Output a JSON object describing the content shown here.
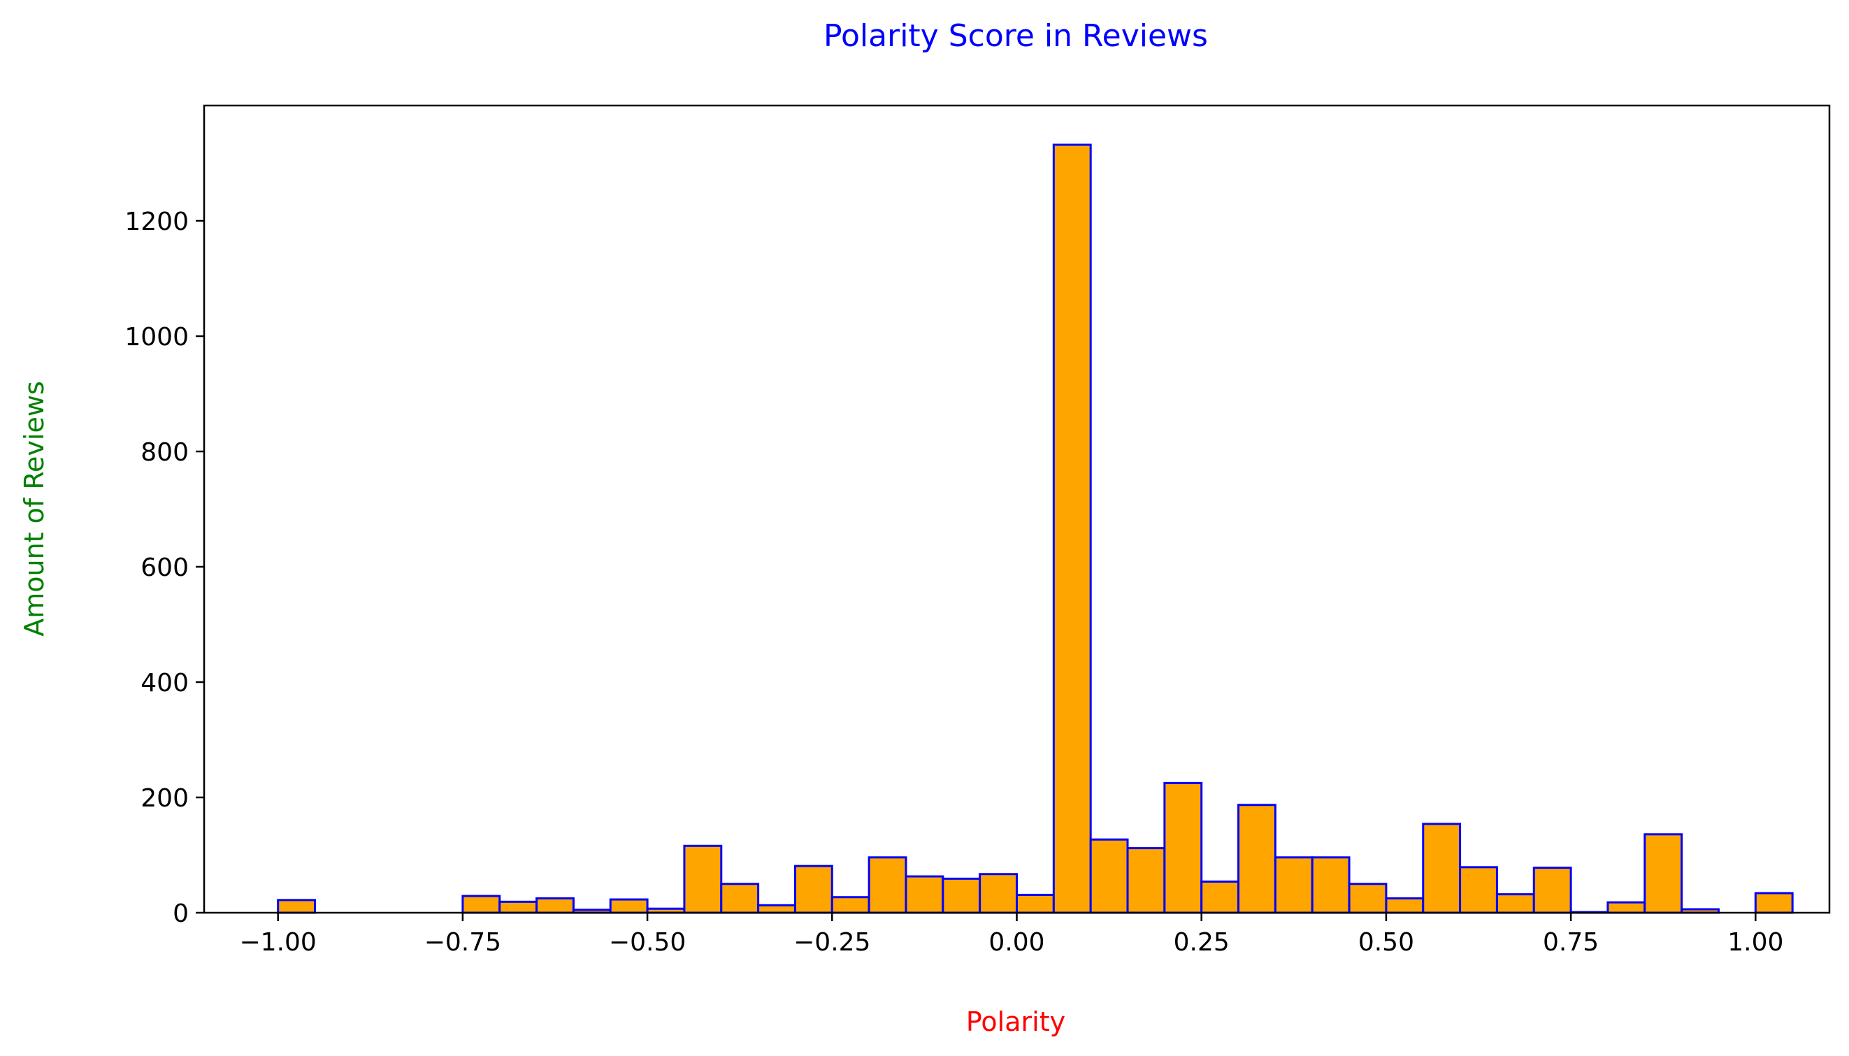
{
  "chart_data": {
    "type": "bar",
    "title": "Polarity Score in Reviews",
    "xlabel": "Polarity",
    "ylabel": "Amount of Reviews",
    "xlim": [
      -1.1,
      1.1
    ],
    "ylim": [
      0,
      1400
    ],
    "bin_width": 0.05,
    "bin_start": -1.0,
    "values": [
      22,
      0,
      0,
      0,
      0,
      29,
      19,
      25,
      5,
      23,
      7,
      116,
      50,
      13,
      81,
      27,
      96,
      63,
      59,
      67,
      31,
      1332,
      127,
      112,
      225,
      54,
      187,
      96,
      96,
      50,
      25,
      154,
      79,
      32,
      78,
      1,
      18,
      136,
      6,
      0,
      34
    ],
    "x_ticks": [
      -1.0,
      -0.75,
      -0.5,
      -0.25,
      0.0,
      0.25,
      0.5,
      0.75,
      1.0
    ],
    "x_tick_labels": [
      "−1.00",
      "−0.75",
      "−0.50",
      "−0.25",
      "0.00",
      "0.25",
      "0.50",
      "0.75",
      "1.00"
    ],
    "y_ticks": [
      0,
      200,
      400,
      600,
      800,
      1000,
      1200
    ],
    "y_tick_labels": [
      "0",
      "200",
      "400",
      "600",
      "800",
      "1000",
      "1200"
    ],
    "grid": false,
    "colors": {
      "bar_fill": "#FFA500",
      "bar_edge": "#0000FF",
      "title": "#0000FF",
      "xlabel": "#FF0000",
      "ylabel": "#008000"
    }
  }
}
